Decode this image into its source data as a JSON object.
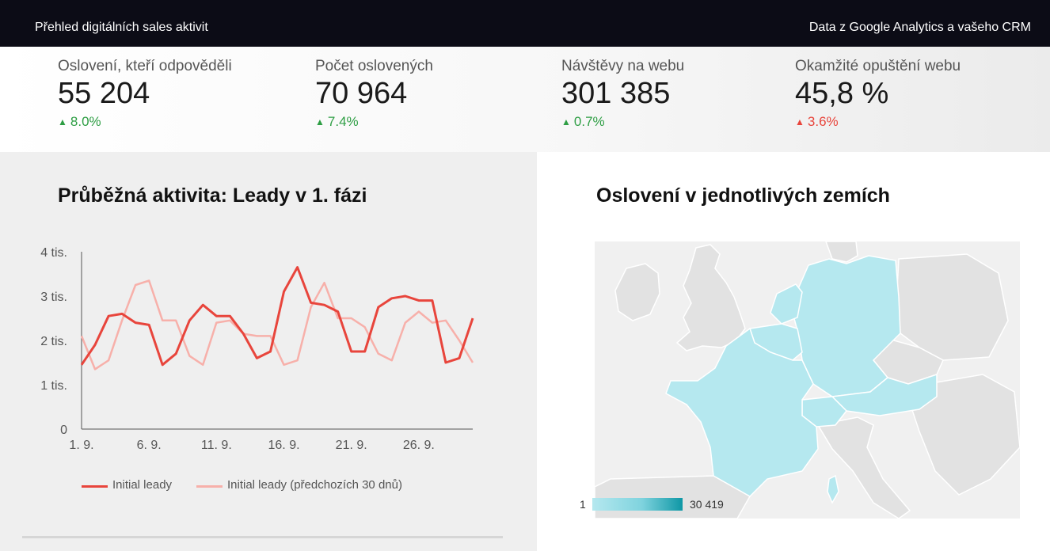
{
  "header": {
    "title": "Přehled digitálních sales aktivit",
    "source_note": "Data z Google Analytics a vašeho CRM"
  },
  "kpis": [
    {
      "label": "Oslovení, kteří odpověděli",
      "value": "55 204",
      "delta": "8.0%",
      "direction": "up",
      "status_color": "#2e9e44"
    },
    {
      "label": "Počet oslovených",
      "value": "70 964",
      "delta": "7.4%",
      "direction": "up",
      "status_color": "#2e9e44"
    },
    {
      "label": "Návštěvy na webu",
      "value": "301 385",
      "delta": "0.7%",
      "direction": "up",
      "status_color": "#2e9e44"
    },
    {
      "label": "Okamžité opuštění webu",
      "value": "45,8 %",
      "delta": "3.6%",
      "direction": "up",
      "status_color": "#e8453c"
    }
  ],
  "line_panel": {
    "title": "Průběžná aktivita: Leady v 1. fázi"
  },
  "map_panel": {
    "title": "Oslovení v jednotlivých zemích",
    "scale_min": "1",
    "scale_max": "30 419",
    "highlight_color": "#b5e8ef",
    "scale_end_color": "#0e97a5"
  },
  "chart_data": {
    "type": "line",
    "title": "Průběžná aktivita: Leady v 1. fázi",
    "xlabel": "",
    "ylabel": "",
    "x": [
      1,
      2,
      3,
      4,
      5,
      6,
      7,
      8,
      9,
      10,
      11,
      12,
      13,
      14,
      15,
      16,
      17,
      18,
      19,
      20,
      21,
      22,
      23,
      24,
      25,
      26,
      27,
      28,
      29,
      30
    ],
    "x_tick_values": [
      1,
      6,
      11,
      16,
      21,
      26
    ],
    "x_tick_labels": [
      "1. 9.",
      "6. 9.",
      "11. 9.",
      "16. 9.",
      "21. 9.",
      "26. 9."
    ],
    "y_tick_values": [
      0,
      1000,
      2000,
      3000,
      4000
    ],
    "y_tick_labels": [
      "0",
      "1 tis.",
      "2 tis.",
      "3 tis.",
      "4 tis."
    ],
    "ylim": [
      0,
      4000
    ],
    "xlim": [
      1,
      30
    ],
    "grid": false,
    "legend_position": "bottom",
    "series": [
      {
        "name": "Initial leady",
        "color": "#e8453c",
        "values": [
          1450,
          1900,
          2550,
          2600,
          2400,
          2350,
          1450,
          1700,
          2450,
          2800,
          2550,
          2550,
          2150,
          1600,
          1750,
          3100,
          3650,
          2850,
          2800,
          2650,
          1750,
          1750,
          2750,
          2950,
          3000,
          2900,
          2900,
          1500,
          1600,
          2500
        ]
      },
      {
        "name": "Initial leady (předchozích 30 dnů)",
        "color": "#f7b0aa",
        "values": [
          2100,
          1350,
          1550,
          2450,
          3250,
          3350,
          2450,
          2450,
          1650,
          1450,
          2400,
          2450,
          2150,
          2100,
          2100,
          1450,
          1550,
          2750,
          3300,
          2500,
          2500,
          2300,
          1700,
          1550,
          2400,
          2650,
          2400,
          2450,
          2000,
          1500
        ]
      }
    ]
  }
}
